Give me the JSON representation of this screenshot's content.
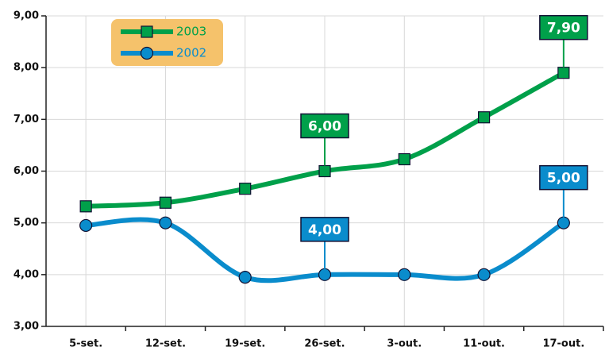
{
  "chart_data": {
    "type": "line",
    "categories": [
      "5-set.",
      "12-set.",
      "19-set.",
      "26-set.",
      "3-out.",
      "11-out.",
      "17-out."
    ],
    "series": [
      {
        "name": "2003",
        "color": "#00a04a",
        "marker": "square",
        "values": [
          5.32,
          5.39,
          5.66,
          6.0,
          6.23,
          7.04,
          7.9
        ],
        "value_labels": [
          null,
          null,
          null,
          "6,00",
          null,
          null,
          "7,90"
        ]
      },
      {
        "name": "2002",
        "color": "#0a8ccc",
        "marker": "circle",
        "values": [
          4.95,
          5.0,
          3.95,
          4.0,
          4.0,
          4.0,
          5.0
        ],
        "value_labels": [
          null,
          null,
          null,
          "4,00",
          null,
          null,
          "5,00"
        ]
      }
    ],
    "ylim": [
      3,
      9
    ],
    "yticks": [
      {
        "value": 3,
        "label": "3,00"
      },
      {
        "value": 4,
        "label": "4,00"
      },
      {
        "value": 5,
        "label": "5,00"
      },
      {
        "value": 6,
        "label": "6,00"
      },
      {
        "value": 7,
        "label": "7,00"
      },
      {
        "value": 8,
        "label": "8,00"
      },
      {
        "value": 9,
        "label": "9,00"
      }
    ],
    "grid": true,
    "smooth": true,
    "legend": "upper left"
  }
}
